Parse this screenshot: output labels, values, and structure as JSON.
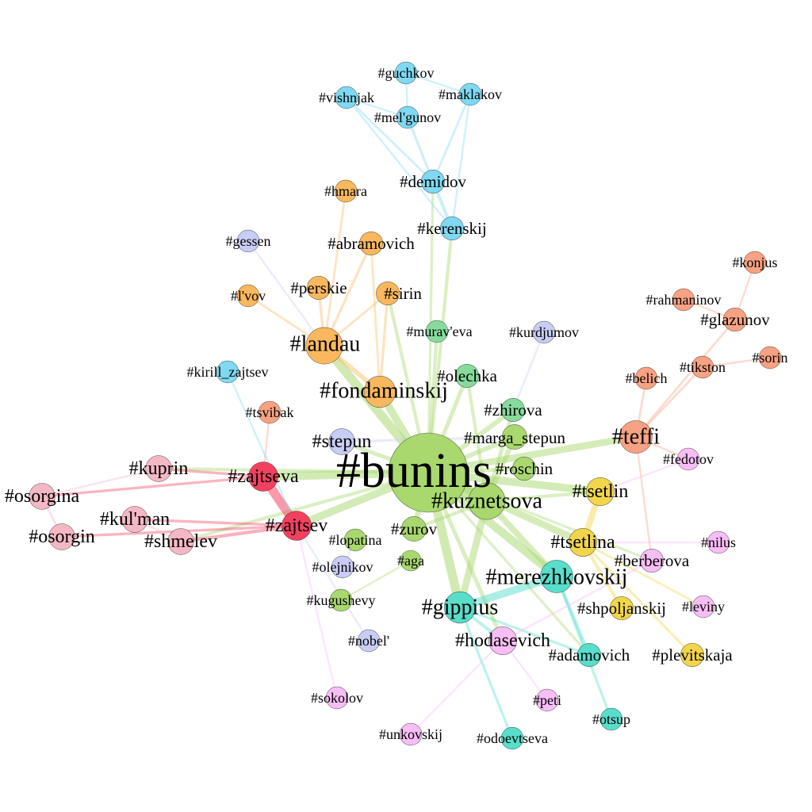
{
  "colors": {
    "orange": "#F9B85E",
    "blue": "#7FD9F2",
    "light_green": "#A8D86E",
    "green": "#86DB9C",
    "salmon": "#F8A283",
    "pink": "#F4B8C4",
    "red": "#F2415F",
    "yellow": "#F2D54C",
    "teal": "#58DECB",
    "lavender": "#C8CDF5",
    "violet": "#F7BDF5"
  },
  "nodes": [
    {
      "id": "bunins",
      "label": "#bunins",
      "group": "light_green",
      "size": 1.0
    },
    {
      "id": "kuznetsova",
      "label": "#kuznetsova",
      "group": "light_green",
      "size": 0.36
    },
    {
      "id": "landau",
      "label": "#landau",
      "group": "orange",
      "size": 0.36
    },
    {
      "id": "fondaminskij",
      "label": "#fondaminskij",
      "group": "orange",
      "size": 0.28
    },
    {
      "id": "teffi",
      "label": "#teffi",
      "group": "salmon",
      "size": 0.3
    },
    {
      "id": "merezhkovskij",
      "label": "#merezhkovskij",
      "group": "teal",
      "size": 0.3
    },
    {
      "id": "gippius",
      "label": "#gippius",
      "group": "teal",
      "size": 0.28
    },
    {
      "id": "zajtseva",
      "label": "#zajtseva",
      "group": "red",
      "size": 0.25
    },
    {
      "id": "zajtsev",
      "label": "#zajtsev",
      "group": "red",
      "size": 0.25
    },
    {
      "id": "tsetlin",
      "label": "#tsetlin",
      "group": "yellow",
      "size": 0.23
    },
    {
      "id": "tsetlina",
      "label": "#tsetlina",
      "group": "yellow",
      "size": 0.23
    },
    {
      "id": "hodasevich",
      "label": "#hodasevich",
      "group": "violet",
      "size": 0.23
    },
    {
      "id": "kuprin",
      "label": "#kuprin",
      "group": "pink",
      "size": 0.2
    },
    {
      "id": "osorgina",
      "label": "#osorgina",
      "group": "pink",
      "size": 0.2
    },
    {
      "id": "osorgin",
      "label": "#osorgin",
      "group": "pink",
      "size": 0.2
    },
    {
      "id": "kulman",
      "label": "#kul'man",
      "group": "pink",
      "size": 0.2
    },
    {
      "id": "shmelev",
      "label": "#shmelev",
      "group": "pink",
      "size": 0.2
    },
    {
      "id": "stepun",
      "label": "#stepun",
      "group": "lavender",
      "size": 0.2
    },
    {
      "id": "zurov",
      "label": "#zurov",
      "group": "light_green",
      "size": 0.18
    },
    {
      "id": "marga_stepun",
      "label": "#marga_stepun",
      "group": "light_green",
      "size": 0.18
    },
    {
      "id": "roschin",
      "label": "#roschin",
      "group": "light_green",
      "size": 0.16
    },
    {
      "id": "zhirova",
      "label": "#zhirova",
      "group": "green",
      "size": 0.16
    },
    {
      "id": "olechka",
      "label": "#olechka",
      "group": "green",
      "size": 0.16
    },
    {
      "id": "muraveva",
      "label": "#murav'eva",
      "group": "green",
      "size": 0.14
    },
    {
      "id": "lopatina",
      "label": "#lopatina",
      "group": "light_green",
      "size": 0.14
    },
    {
      "id": "aga",
      "label": "#aga",
      "group": "light_green",
      "size": 0.12
    },
    {
      "id": "kugushevy",
      "label": "#kugushevy",
      "group": "light_green",
      "size": 0.14
    },
    {
      "id": "olejnikov",
      "label": "#olejnikov",
      "group": "lavender",
      "size": 0.14
    },
    {
      "id": "nobel",
      "label": "#nobel'",
      "group": "lavender",
      "size": 0.14
    },
    {
      "id": "sokolov",
      "label": "#sokolov",
      "group": "violet",
      "size": 0.14
    },
    {
      "id": "unkovskij",
      "label": "#unkovskij",
      "group": "violet",
      "size": 0.14
    },
    {
      "id": "odoevtseva",
      "label": "#odoevtseva",
      "group": "teal",
      "size": 0.14
    },
    {
      "id": "peti",
      "label": "#peti",
      "group": "violet",
      "size": 0.14
    },
    {
      "id": "otsup",
      "label": "#otsup",
      "group": "teal",
      "size": 0.14
    },
    {
      "id": "adamovich",
      "label": "#adamovich",
      "group": "teal",
      "size": 0.16
    },
    {
      "id": "plevitskaja",
      "label": "#plevitskaja",
      "group": "yellow",
      "size": 0.16
    },
    {
      "id": "shpoljanskij",
      "label": "#shpoljanskij",
      "group": "yellow",
      "size": 0.16
    },
    {
      "id": "leviny",
      "label": "#leviny",
      "group": "violet",
      "size": 0.14
    },
    {
      "id": "berberova",
      "label": "#berberova",
      "group": "violet",
      "size": 0.16
    },
    {
      "id": "nilus",
      "label": "#nilus",
      "group": "violet",
      "size": 0.14
    },
    {
      "id": "fedotov",
      "label": "#fedotov",
      "group": "violet",
      "size": 0.14
    },
    {
      "id": "belich",
      "label": "#belich",
      "group": "salmon",
      "size": 0.14
    },
    {
      "id": "tikston",
      "label": "#tikston",
      "group": "salmon",
      "size": 0.14
    },
    {
      "id": "sorin",
      "label": "#sorin",
      "group": "salmon",
      "size": 0.14
    },
    {
      "id": "glazunov",
      "label": "#glazunov",
      "group": "salmon",
      "size": 0.16
    },
    {
      "id": "rahmaninov",
      "label": "#rahmaninov",
      "group": "salmon",
      "size": 0.14
    },
    {
      "id": "konjus",
      "label": "#konjus",
      "group": "salmon",
      "size": 0.14
    },
    {
      "id": "kurdjumov",
      "label": "#kurdjumov",
      "group": "lavender",
      "size": 0.14
    },
    {
      "id": "kirill_zajtsev",
      "label": "#kirill_zajtsev",
      "group": "blue",
      "size": 0.14
    },
    {
      "id": "tsvibak",
      "label": "#tsvibak",
      "group": "salmon",
      "size": 0.14
    },
    {
      "id": "gessen",
      "label": "#gessen",
      "group": "lavender",
      "size": 0.14
    },
    {
      "id": "lvov",
      "label": "#l'vov",
      "group": "orange",
      "size": 0.14
    },
    {
      "id": "perskie",
      "label": "#perskie",
      "group": "orange",
      "size": 0.16
    },
    {
      "id": "sirin",
      "label": "#sirin",
      "group": "orange",
      "size": 0.16
    },
    {
      "id": "abramovich",
      "label": "#abramovich",
      "group": "orange",
      "size": 0.16
    },
    {
      "id": "hmara",
      "label": "#hmara",
      "group": "orange",
      "size": 0.14
    },
    {
      "id": "kerenskij",
      "label": "#kerenskij",
      "group": "blue",
      "size": 0.16
    },
    {
      "id": "demidov",
      "label": "#demidov",
      "group": "blue",
      "size": 0.16
    },
    {
      "id": "melgunov",
      "label": "#mel'gunov",
      "group": "blue",
      "size": 0.14
    },
    {
      "id": "vishnjak",
      "label": "#vishnjak",
      "group": "blue",
      "size": 0.14
    },
    {
      "id": "maklakov",
      "label": "#maklakov",
      "group": "blue",
      "size": 0.14
    },
    {
      "id": "guchkov",
      "label": "#guchkov",
      "group": "blue",
      "size": 0.14
    }
  ],
  "edges": [
    {
      "source": "bunins",
      "target": "kuznetsova",
      "weight": 0.9
    },
    {
      "source": "bunins",
      "target": "landau",
      "weight": 0.6
    },
    {
      "source": "bunins",
      "target": "fondaminskij",
      "weight": 0.5
    },
    {
      "source": "bunins",
      "target": "teffi",
      "weight": 0.45
    },
    {
      "source": "bunins",
      "target": "zajtseva",
      "weight": 0.55
    },
    {
      "source": "bunins",
      "target": "zajtsev",
      "weight": 0.5
    },
    {
      "source": "bunins",
      "target": "gippius",
      "weight": 0.6
    },
    {
      "source": "bunins",
      "target": "merezhkovskij",
      "weight": 0.55
    },
    {
      "source": "bunins",
      "target": "tsetlin",
      "weight": 0.5
    },
    {
      "source": "bunins",
      "target": "tsetlina",
      "weight": 0.45
    },
    {
      "source": "bunins",
      "target": "zurov",
      "weight": 0.35
    },
    {
      "source": "bunins",
      "target": "marga_stepun",
      "weight": 0.3
    },
    {
      "source": "bunins",
      "target": "zhirova",
      "weight": 0.3
    },
    {
      "source": "bunins",
      "target": "olechka",
      "weight": 0.25
    },
    {
      "source": "bunins",
      "target": "roschin",
      "weight": 0.25
    },
    {
      "source": "bunins",
      "target": "stepun",
      "weight": 0.25
    },
    {
      "source": "bunins",
      "target": "kuprin",
      "weight": 0.2
    },
    {
      "source": "bunins",
      "target": "shmelev",
      "weight": 0.2
    },
    {
      "source": "bunins",
      "target": "hodasevich",
      "weight": 0.25
    },
    {
      "source": "bunins",
      "target": "kerenskij",
      "weight": 0.2
    },
    {
      "source": "bunins",
      "target": "sirin",
      "weight": 0.2
    },
    {
      "source": "bunins",
      "target": "muraveva",
      "weight": 0.2
    },
    {
      "source": "bunins",
      "target": "demidov",
      "weight": 0.15
    },
    {
      "source": "bunins",
      "target": "berberova",
      "weight": 0.15
    },
    {
      "source": "bunins",
      "target": "adamovich",
      "weight": 0.15
    },
    {
      "source": "kuznetsova",
      "target": "gippius",
      "weight": 0.45
    },
    {
      "source": "kuznetsova",
      "target": "merezhkovskij",
      "weight": 0.4
    },
    {
      "source": "kuznetsova",
      "target": "marga_stepun",
      "weight": 0.3
    },
    {
      "source": "kuznetsova",
      "target": "zhirova",
      "weight": 0.25
    },
    {
      "source": "kuznetsova",
      "target": "olechka",
      "weight": 0.2
    },
    {
      "source": "kuznetsova",
      "target": "tsetlin",
      "weight": 0.2
    },
    {
      "source": "kuznetsova",
      "target": "zurov",
      "weight": 0.2
    },
    {
      "source": "merezhkovskij",
      "target": "gippius",
      "weight": 0.5
    },
    {
      "source": "merezhkovskij",
      "target": "adamovich",
      "weight": 0.2
    },
    {
      "source": "merezhkovskij",
      "target": "otsup",
      "weight": 0.15
    },
    {
      "source": "gippius",
      "target": "odoevtseva",
      "weight": 0.15
    },
    {
      "source": "gippius",
      "target": "hodasevich",
      "weight": 0.2
    },
    {
      "source": "gippius",
      "target": "adamovich",
      "weight": 0.15
    },
    {
      "source": "zajtseva",
      "target": "zajtsev",
      "weight": 0.6
    },
    {
      "source": "zajtseva",
      "target": "kuprin",
      "weight": 0.15
    },
    {
      "source": "zajtseva",
      "target": "osorgina",
      "weight": 0.15
    },
    {
      "source": "zajtsev",
      "target": "shmelev",
      "weight": 0.2
    },
    {
      "source": "zajtsev",
      "target": "kulman",
      "weight": 0.15
    },
    {
      "source": "zajtsev",
      "target": "osorgin",
      "weight": 0.15
    },
    {
      "source": "kuprin",
      "target": "osorgina",
      "weight": 0.1
    },
    {
      "source": "osorgina",
      "target": "osorgin",
      "weight": 0.15
    },
    {
      "source": "kulman",
      "target": "shmelev",
      "weight": 0.12
    },
    {
      "source": "landau",
      "target": "fondaminskij",
      "weight": 0.3
    },
    {
      "source": "landau",
      "target": "perskie",
      "weight": 0.15
    },
    {
      "source": "landau",
      "target": "lvov",
      "weight": 0.12
    },
    {
      "source": "landau",
      "target": "hmara",
      "weight": 0.12
    },
    {
      "source": "landau",
      "target": "abramovich",
      "weight": 0.15
    },
    {
      "source": "landau",
      "target": "sirin",
      "weight": 0.12
    },
    {
      "source": "fondaminskij",
      "target": "sirin",
      "weight": 0.15
    },
    {
      "source": "fondaminskij",
      "target": "abramovich",
      "weight": 0.12
    },
    {
      "source": "tsetlin",
      "target": "tsetlina",
      "weight": 0.4
    },
    {
      "source": "tsetlina",
      "target": "shpoljanskij",
      "weight": 0.2
    },
    {
      "source": "tsetlina",
      "target": "plevitskaja",
      "weight": 0.15
    },
    {
      "source": "tsetlina",
      "target": "leviny",
      "weight": 0.12
    },
    {
      "source": "teffi",
      "target": "fedotov",
      "weight": 0.1
    },
    {
      "source": "teffi",
      "target": "tikston",
      "weight": 0.12
    },
    {
      "source": "teffi",
      "target": "glazunov",
      "weight": 0.12
    },
    {
      "source": "teffi",
      "target": "belich",
      "weight": 0.12
    },
    {
      "source": "teffi",
      "target": "berberova",
      "weight": 0.1
    },
    {
      "source": "glazunov",
      "target": "konjus",
      "weight": 0.1
    },
    {
      "source": "glazunov",
      "target": "rahmaninov",
      "weight": 0.1
    },
    {
      "source": "tikston",
      "target": "sorin",
      "weight": 0.1
    },
    {
      "source": "kerenskij",
      "target": "demidov",
      "weight": 0.2
    },
    {
      "source": "demidov",
      "target": "melgunov",
      "weight": 0.15
    },
    {
      "source": "demidov",
      "target": "vishnjak",
      "weight": 0.12
    },
    {
      "source": "demidov",
      "target": "maklakov",
      "weight": 0.12
    },
    {
      "source": "melgunov",
      "target": "guchkov",
      "weight": 0.1
    },
    {
      "source": "melgunov",
      "target": "vishnjak",
      "weight": 0.1
    },
    {
      "source": "maklakov",
      "target": "guchkov",
      "weight": 0.1
    },
    {
      "source": "kerenskij",
      "target": "maklakov",
      "weight": 0.1
    },
    {
      "source": "kerenskij",
      "target": "vishnjak",
      "weight": 0.1
    },
    {
      "source": "hodasevich",
      "target": "peti",
      "weight": 0.1
    },
    {
      "source": "hodasevich",
      "target": "unkovskij",
      "weight": 0.1
    },
    {
      "source": "hodasevich",
      "target": "berberova",
      "weight": 0.12
    },
    {
      "source": "nobel",
      "target": "zajtsev",
      "weight": 0.1
    },
    {
      "source": "sokolov",
      "target": "zajtsev",
      "weight": 0.1
    },
    {
      "source": "olejnikov",
      "target": "lopatina",
      "weight": 0.1
    },
    {
      "source": "kugushevy",
      "target": "aga",
      "weight": 0.1
    },
    {
      "source": "stepun",
      "target": "marga_stepun",
      "weight": 0.15
    },
    {
      "source": "tsvibak",
      "target": "zajtseva",
      "weight": 0.1
    },
    {
      "source": "kirill_zajtsev",
      "target": "zajtsev",
      "weight": 0.1
    },
    {
      "source": "gessen",
      "target": "landau",
      "weight": 0.1
    },
    {
      "source": "kurdjumov",
      "target": "zhirova",
      "weight": 0.1
    },
    {
      "source": "nilus",
      "target": "tsetlina",
      "weight": 0.1
    },
    {
      "source": "fedotov",
      "target": "tsetlin",
      "weight": 0.1
    }
  ]
}
